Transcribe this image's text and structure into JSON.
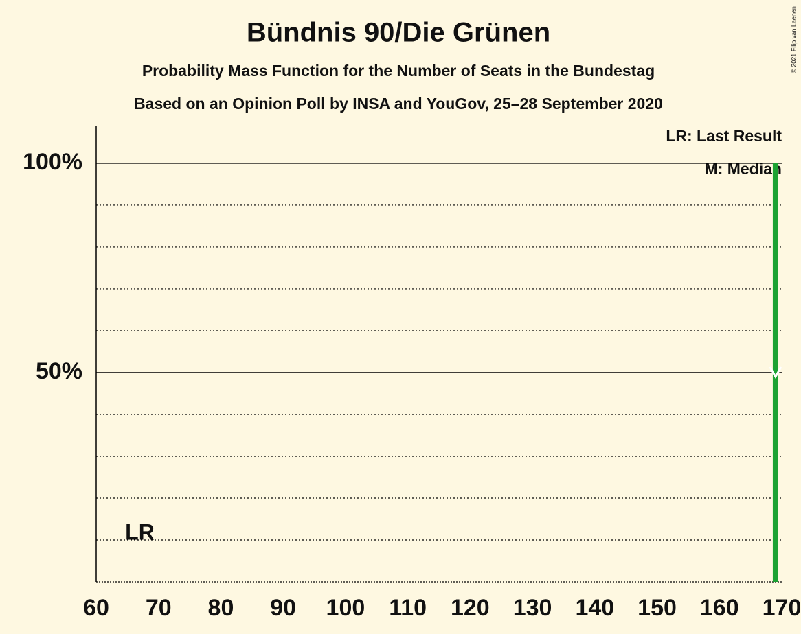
{
  "chart_data": {
    "type": "bar",
    "title": "Bündnis 90/Die Grünen",
    "subtitle": "Probability Mass Function for the Number of Seats in the Bundestag",
    "subtitle2": "Based on an Opinion Poll by INSA and YouGov, 25–28 September 2020",
    "copyright": "© 2021 Filip van Laenen",
    "legend": [
      "LR: Last Result",
      "M: Median"
    ],
    "x": [
      169
    ],
    "values": [
      100
    ],
    "color": "#1ca233",
    "xlim": [
      60,
      170
    ],
    "xticks": [
      60,
      70,
      80,
      90,
      100,
      110,
      120,
      130,
      140,
      150,
      160,
      170
    ],
    "ylim": [
      0,
      109
    ],
    "yticks": [
      {
        "value": 50,
        "label": "50%"
      },
      {
        "value": 100,
        "label": "100%"
      }
    ],
    "minor_yticks": [
      10,
      20,
      30,
      40,
      60,
      70,
      80,
      90
    ],
    "last_result": 67,
    "last_result_label": "LR",
    "median": 169
  }
}
